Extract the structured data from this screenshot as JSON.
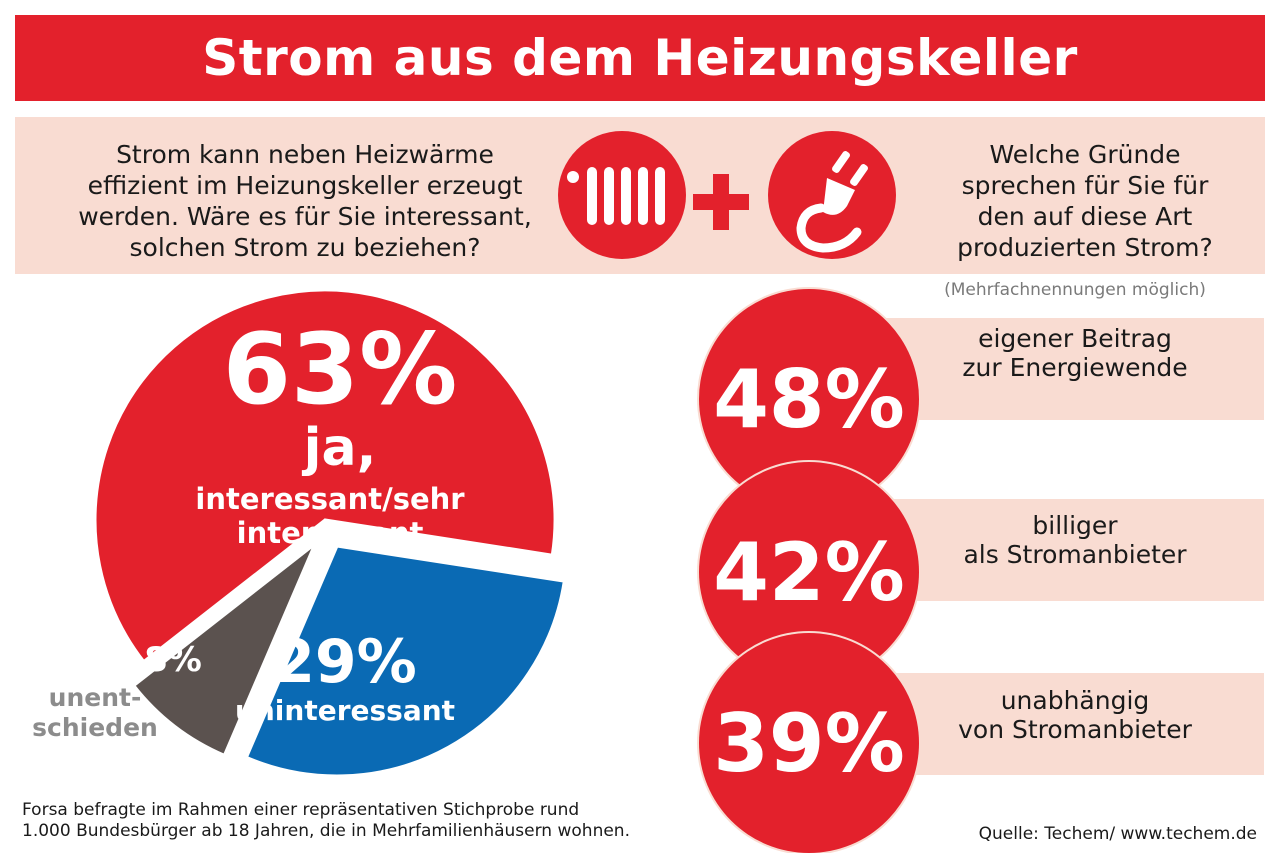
{
  "header": {
    "title": "Strom aus dem Heizungskeller"
  },
  "questions": {
    "left": [
      "Strom kann neben Heizwärme",
      "effizient im Heizungskeller erzeugt",
      "werden. Wäre es für Sie interessant,",
      "solchen Strom zu beziehen?"
    ],
    "right": [
      "Welche Gründe",
      "sprechen für Sie für",
      "den auf diese Art",
      "produzierten Strom?"
    ],
    "note": "(Mehrfachnennungen möglich)"
  },
  "icons": [
    "radiator-icon",
    "plug-icon",
    "plus-icon"
  ],
  "colors": {
    "red": "#e3212c",
    "blue": "#0a6ab4",
    "gray": "#5b524f",
    "light_pink": "#f9dcd2",
    "gray_text": "#8c8c8c"
  },
  "chart_data": [
    {
      "type": "pie",
      "categories": [
        "ja, interessant/sehr interessant",
        "uninteressant",
        "unentschieden"
      ],
      "values": [
        63,
        29,
        8
      ],
      "labels": {
        "yes_value": "63%",
        "yes_line1": "ja,",
        "yes_line2": "interessant/sehr interessant",
        "no_value": "29%",
        "no_text": "uninteressant",
        "undecided_value": "8%",
        "undecided_line1": "unent-",
        "undecided_line2": "schieden"
      }
    },
    {
      "type": "bar",
      "categories": [
        "eigener Beitrag zur Energiewende",
        "billiger als Stromanbieter",
        "unabhängig von Stromanbieter"
      ],
      "values": [
        48,
        42,
        39
      ],
      "items": [
        {
          "value": "48%",
          "line1": "eigener Beitrag",
          "line2": "zur Energiewende"
        },
        {
          "value": "42%",
          "line1": "billiger",
          "line2": "als Stromanbieter"
        },
        {
          "value": "39%",
          "line1": "unabhängig",
          "line2": "von Stromanbieter"
        }
      ]
    }
  ],
  "footer": {
    "note_line1": "Forsa befragte im Rahmen einer repräsentativen Stichprobe rund",
    "note_line2": "1.000 Bundesbürger ab 18 Jahren, die in Mehrfamilienhäusern wohnen.",
    "source": "Quelle: Techem/ www.techem.de"
  }
}
